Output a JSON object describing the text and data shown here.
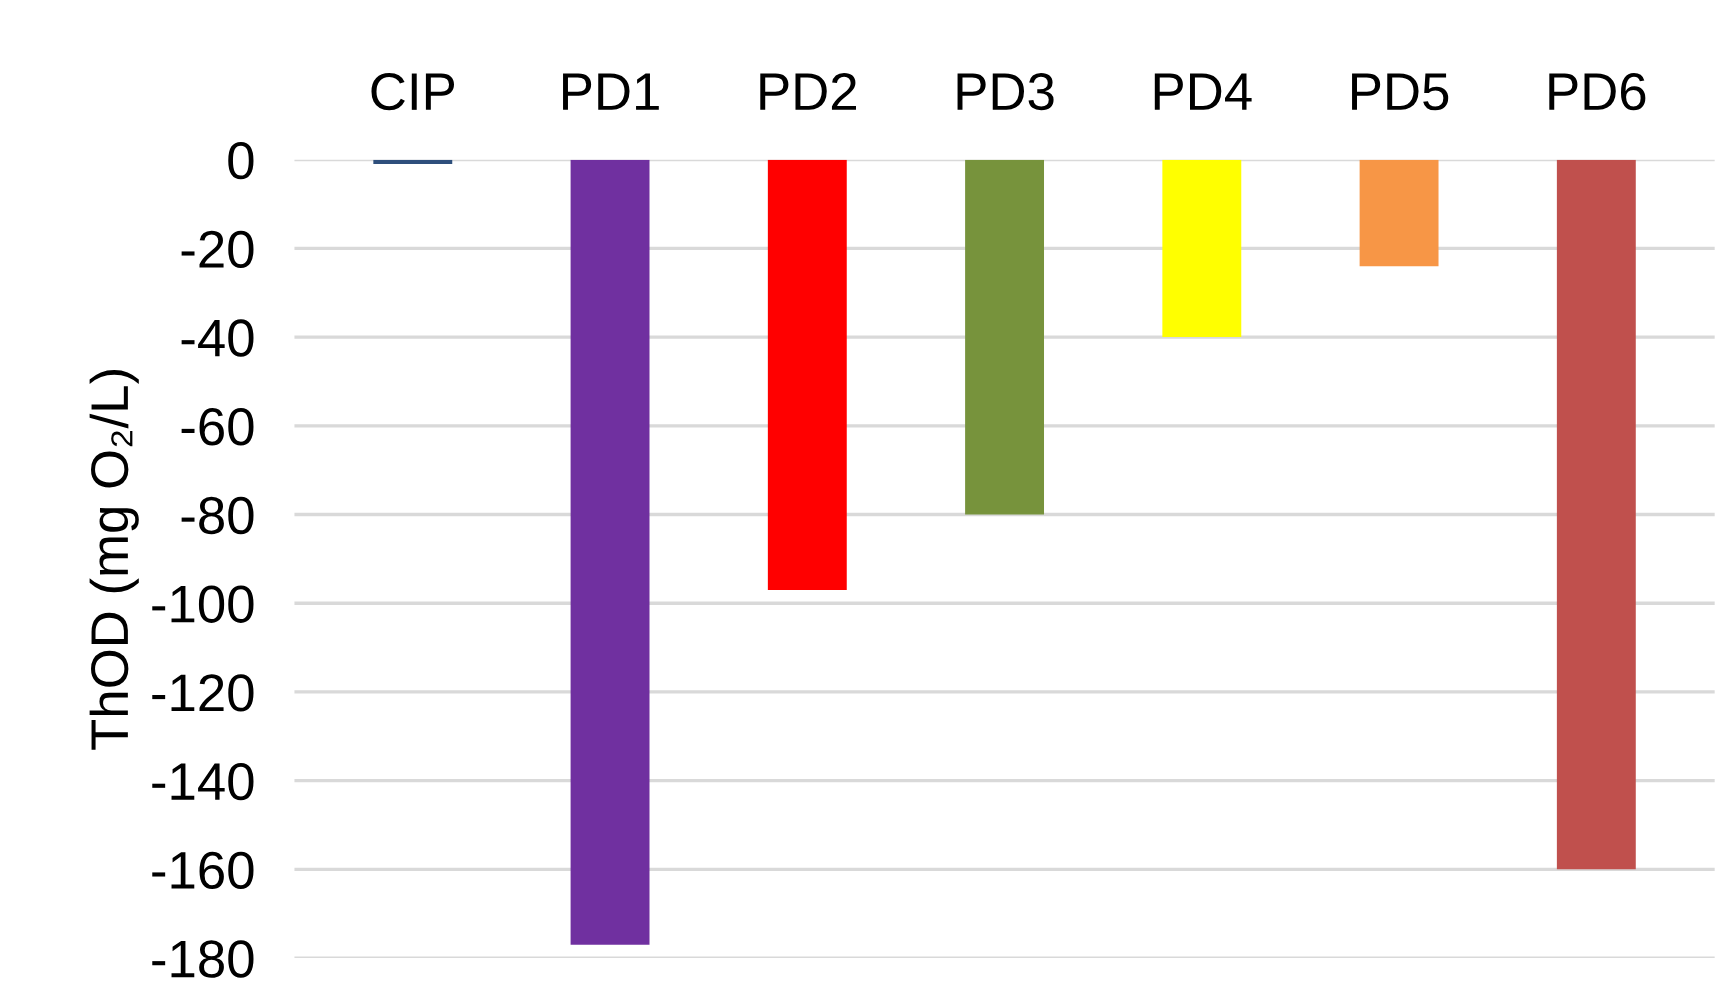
{
  "chart_data": {
    "type": "bar",
    "ylabel": "ThOD (mg O₂/L)",
    "categories": [
      "CIP",
      "PD1",
      "PD2",
      "PD3",
      "PD4",
      "PD5",
      "PD6"
    ],
    "values": [
      -1,
      -177,
      -97,
      -80,
      -40,
      -24,
      -160
    ],
    "colors": [
      "#2e4f7c",
      "#7030a0",
      "#ff0000",
      "#77933c",
      "#ffff00",
      "#f79646",
      "#c0504d"
    ],
    "ylim": [
      -180,
      0
    ],
    "yticks": [
      0,
      -20,
      -40,
      -60,
      -80,
      -100,
      -120,
      -140,
      -160,
      -180
    ],
    "grid": "y"
  }
}
